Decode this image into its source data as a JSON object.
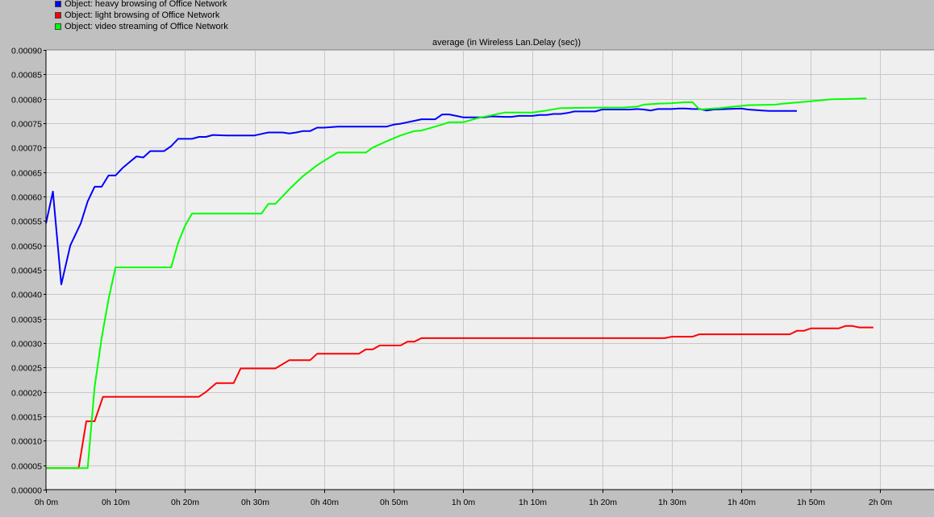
{
  "legend": [
    {
      "label": "Object: heavy browsing of Office Network",
      "color": "#0000ff"
    },
    {
      "label": "Object: light browsing of Office Network",
      "color": "#ff0000"
    },
    {
      "label": "Object: video streaming of Office Network",
      "color": "#00ff00"
    }
  ],
  "chart_data": {
    "type": "line",
    "title": "average (in Wireless Lan.Delay (sec))",
    "x_unit": "minutes",
    "xlim": [
      0,
      120
    ],
    "ylim": [
      0,
      0.0009
    ],
    "grid": true,
    "legend_position": "top-left",
    "x_ticks": [
      {
        "value": 0,
        "label": "0h 0m"
      },
      {
        "value": 10,
        "label": "0h 10m"
      },
      {
        "value": 20,
        "label": "0h 20m"
      },
      {
        "value": 30,
        "label": "0h 30m"
      },
      {
        "value": 40,
        "label": "0h 40m"
      },
      {
        "value": 50,
        "label": "0h 50m"
      },
      {
        "value": 60,
        "label": "1h 0m"
      },
      {
        "value": 70,
        "label": "1h 10m"
      },
      {
        "value": 80,
        "label": "1h 20m"
      },
      {
        "value": 90,
        "label": "1h 30m"
      },
      {
        "value": 100,
        "label": "1h 40m"
      },
      {
        "value": 110,
        "label": "1h 50m"
      },
      {
        "value": 120,
        "label": "2h 0m"
      }
    ],
    "y_ticks": [
      {
        "value": 0.0009,
        "label": "0.00090"
      },
      {
        "value": 0.00085,
        "label": "0.00085"
      },
      {
        "value": 0.0008,
        "label": "0.00080"
      },
      {
        "value": 0.00075,
        "label": "0.00075"
      },
      {
        "value": 0.0007,
        "label": "0.00070"
      },
      {
        "value": 0.00065,
        "label": "0.00065"
      },
      {
        "value": 0.0006,
        "label": "0.00060"
      },
      {
        "value": 0.00055,
        "label": "0.00055"
      },
      {
        "value": 0.0005,
        "label": "0.00050"
      },
      {
        "value": 0.00045,
        "label": "0.00045"
      },
      {
        "value": 0.0004,
        "label": "0.00040"
      },
      {
        "value": 0.00035,
        "label": "0.00035"
      },
      {
        "value": 0.0003,
        "label": "0.00030"
      },
      {
        "value": 0.00025,
        "label": "0.00025"
      },
      {
        "value": 0.0002,
        "label": "0.00020"
      },
      {
        "value": 0.00015,
        "label": "0.00015"
      },
      {
        "value": 0.0001,
        "label": "0.00010"
      },
      {
        "value": 5e-05,
        "label": "0.00005"
      },
      {
        "value": 0,
        "label": "0.00000"
      }
    ],
    "series": [
      {
        "name": "Object: heavy browsing of Office Network",
        "color": "#0000ff",
        "points": [
          [
            0,
            0.000545
          ],
          [
            1,
            0.00061
          ],
          [
            2.2,
            0.00042
          ],
          [
            3.5,
            0.0005
          ],
          [
            5,
            0.000545
          ],
          [
            6,
            0.00059
          ],
          [
            7,
            0.00062
          ],
          [
            8,
            0.00062
          ],
          [
            9,
            0.000643
          ],
          [
            10,
            0.000643
          ],
          [
            11,
            0.000658
          ],
          [
            12,
            0.00067
          ],
          [
            13,
            0.000682
          ],
          [
            14,
            0.00068
          ],
          [
            15,
            0.000693
          ],
          [
            16,
            0.000693
          ],
          [
            17,
            0.000693
          ],
          [
            18,
            0.000703
          ],
          [
            19,
            0.000718
          ],
          [
            20,
            0.000718
          ],
          [
            21,
            0.000718
          ],
          [
            22,
            0.000722
          ],
          [
            23,
            0.000722
          ],
          [
            24,
            0.000726
          ],
          [
            26,
            0.000725
          ],
          [
            28,
            0.000725
          ],
          [
            30,
            0.000725
          ],
          [
            31,
            0.000728
          ],
          [
            32,
            0.000731
          ],
          [
            34,
            0.000731
          ],
          [
            35,
            0.000729
          ],
          [
            36,
            0.000731
          ],
          [
            37,
            0.000734
          ],
          [
            38,
            0.000734
          ],
          [
            39,
            0.000741
          ],
          [
            40,
            0.000741
          ],
          [
            42,
            0.000743
          ],
          [
            45,
            0.000743
          ],
          [
            48,
            0.000743
          ],
          [
            49,
            0.000743
          ],
          [
            50,
            0.000747
          ],
          [
            51,
            0.000749
          ],
          [
            52,
            0.000752
          ],
          [
            53,
            0.000755
          ],
          [
            54,
            0.000758
          ],
          [
            56,
            0.000758
          ],
          [
            57,
            0.000768
          ],
          [
            58,
            0.000768
          ],
          [
            59,
            0.000765
          ],
          [
            60,
            0.000762
          ],
          [
            62,
            0.000762
          ],
          [
            63,
            0.000762
          ],
          [
            64,
            0.000764
          ],
          [
            66,
            0.000763
          ],
          [
            67,
            0.000763
          ],
          [
            68,
            0.000765
          ],
          [
            70,
            0.000765
          ],
          [
            71,
            0.000767
          ],
          [
            72,
            0.000767
          ],
          [
            73,
            0.000769
          ],
          [
            74,
            0.000769
          ],
          [
            75,
            0.000771
          ],
          [
            76,
            0.000774
          ],
          [
            79,
            0.000774
          ],
          [
            80,
            0.000778
          ],
          [
            84,
            0.000778
          ],
          [
            85,
            0.000779
          ],
          [
            86,
            0.000778
          ],
          [
            87,
            0.000776
          ],
          [
            88,
            0.000779
          ],
          [
            90,
            0.000779
          ],
          [
            91,
            0.00078
          ],
          [
            92,
            0.00078
          ],
          [
            93,
            0.000779
          ],
          [
            94,
            0.000779
          ],
          [
            95,
            0.000776
          ],
          [
            96,
            0.000778
          ],
          [
            98,
            0.000779
          ],
          [
            100,
            0.00078
          ],
          [
            101,
            0.000778
          ],
          [
            102,
            0.000777
          ],
          [
            103,
            0.000776
          ],
          [
            104,
            0.000775
          ],
          [
            106,
            0.000775
          ],
          [
            108,
            0.000775
          ]
        ]
      },
      {
        "name": "Object: light browsing of Office Network",
        "color": "#ff0000",
        "points": [
          [
            0,
            4.4e-05
          ],
          [
            4.7,
            4.4e-05
          ],
          [
            5.8,
            0.00014
          ],
          [
            7,
            0.00014
          ],
          [
            8.2,
            0.00019
          ],
          [
            22,
            0.00019
          ],
          [
            23,
            0.0002
          ],
          [
            24.5,
            0.000218
          ],
          [
            27,
            0.000218
          ],
          [
            28,
            0.000248
          ],
          [
            33,
            0.000248
          ],
          [
            35,
            0.000265
          ],
          [
            38,
            0.000265
          ],
          [
            39,
            0.000278
          ],
          [
            45,
            0.000278
          ],
          [
            46,
            0.000287
          ],
          [
            47,
            0.000287
          ],
          [
            48,
            0.000295
          ],
          [
            51,
            0.000295
          ],
          [
            52,
            0.000303
          ],
          [
            53,
            0.000303
          ],
          [
            54,
            0.00031
          ],
          [
            89,
            0.00031
          ],
          [
            90,
            0.000313
          ],
          [
            93,
            0.000313
          ],
          [
            94,
            0.000318
          ],
          [
            107,
            0.000318
          ],
          [
            108,
            0.000325
          ],
          [
            109,
            0.000325
          ],
          [
            110,
            0.00033
          ],
          [
            114,
            0.00033
          ],
          [
            115,
            0.000335
          ],
          [
            116,
            0.000335
          ],
          [
            117,
            0.000332
          ],
          [
            119,
            0.000332
          ]
        ]
      },
      {
        "name": "Object: video streaming of Office Network",
        "color": "#00ff00",
        "points": [
          [
            0,
            4.4e-05
          ],
          [
            6,
            4.4e-05
          ],
          [
            7,
            0.00021
          ],
          [
            8,
            0.00031
          ],
          [
            9,
            0.00039
          ],
          [
            10,
            0.000455
          ],
          [
            18,
            0.000455
          ],
          [
            19,
            0.000505
          ],
          [
            20,
            0.00054
          ],
          [
            21,
            0.000565
          ],
          [
            31,
            0.000565
          ],
          [
            32,
            0.000585
          ],
          [
            33,
            0.000585
          ],
          [
            35,
            0.000615
          ],
          [
            37,
            0.000642
          ],
          [
            39,
            0.000664
          ],
          [
            41,
            0.000682
          ],
          [
            42,
            0.00069
          ],
          [
            46,
            0.00069
          ],
          [
            47,
            0.0007
          ],
          [
            49,
            0.000713
          ],
          [
            51,
            0.000725
          ],
          [
            53,
            0.000734
          ],
          [
            54,
            0.000735
          ],
          [
            56,
            0.000743
          ],
          [
            58,
            0.000752
          ],
          [
            60,
            0.000752
          ],
          [
            62,
            0.00076
          ],
          [
            64,
            0.000766
          ],
          [
            66,
            0.000772
          ],
          [
            70,
            0.000772
          ],
          [
            72,
            0.000776
          ],
          [
            74,
            0.000781
          ],
          [
            80,
            0.000782
          ],
          [
            83,
            0.000782
          ],
          [
            85,
            0.000784
          ],
          [
            86,
            0.000788
          ],
          [
            88,
            0.00079
          ],
          [
            90,
            0.000791
          ],
          [
            92,
            0.000793
          ],
          [
            93,
            0.000793
          ],
          [
            94,
            0.000778
          ],
          [
            95,
            0.000779
          ],
          [
            97,
            0.000781
          ],
          [
            99,
            0.000784
          ],
          [
            101,
            0.000787
          ],
          [
            105,
            0.000788
          ],
          [
            106,
            0.00079
          ],
          [
            110,
            0.000795
          ],
          [
            113,
            0.000799
          ],
          [
            116,
            0.0008
          ],
          [
            118,
            0.000801
          ]
        ]
      }
    ]
  }
}
